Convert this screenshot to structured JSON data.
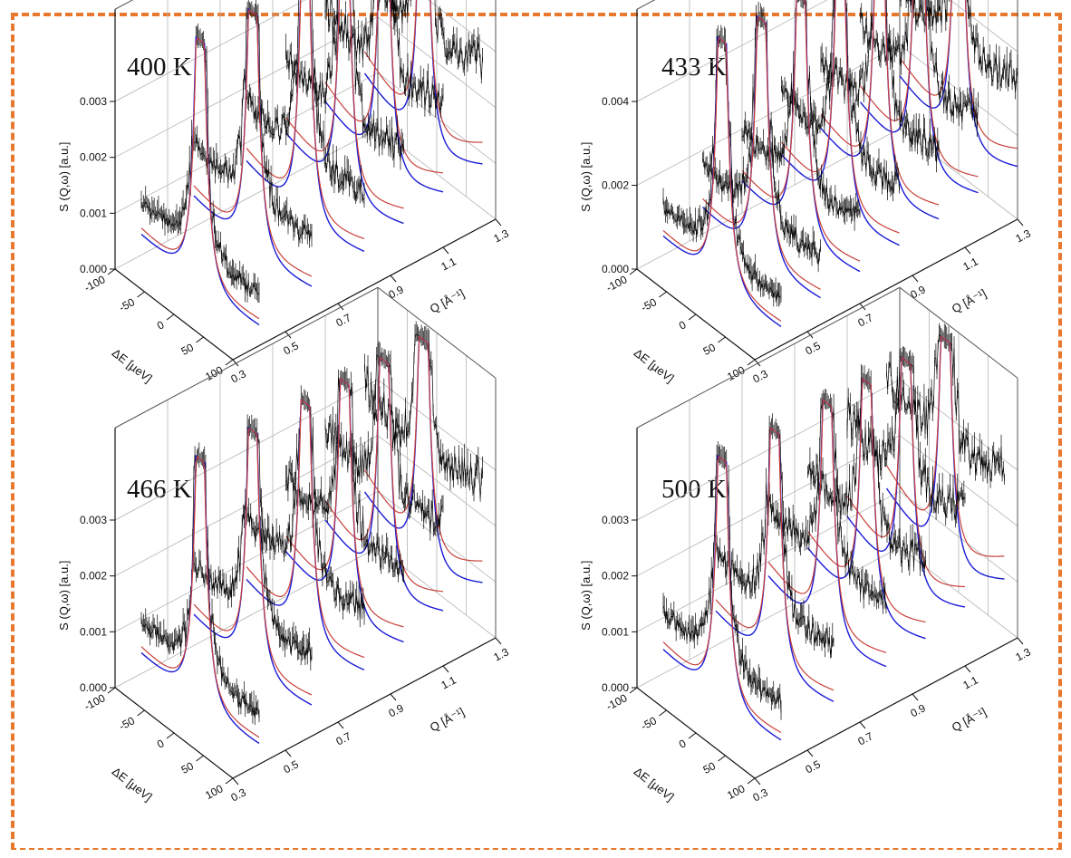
{
  "colors": {
    "frame": "#E8782E",
    "data": "#000000",
    "fit": "#C8403A",
    "component": "#1A1AD6",
    "grid": "#B5B5B5"
  },
  "chart_data": [
    {
      "type": "surface3d-waterfall",
      "title": "400 K",
      "xlabel": "Q [Å⁻¹]",
      "ylabel": "ΔE [µeV]",
      "zlabel": "S (Q,ω) [a.u.]",
      "q_ticks": [
        "0.3",
        "0.5",
        "0.7",
        "0.9",
        "1.1",
        "1.3"
      ],
      "e_ticks": [
        "-100",
        "-50",
        "0",
        "50",
        "100"
      ],
      "z_ticks": [
        "0.000",
        "0.001",
        "0.002",
        "0.003"
      ],
      "q_range": [
        0.3,
        1.3
      ],
      "e_range": [
        -100,
        100
      ],
      "z_range": [
        0,
        0.003
      ],
      "q_values": [
        0.4,
        0.6,
        0.8,
        0.95,
        1.1,
        1.25
      ],
      "baseline_at_edge": [
        0.0005,
        0.0008,
        0.001,
        0.0012,
        0.0015,
        0.0017
      ]
    },
    {
      "type": "surface3d-waterfall",
      "title": "433 K",
      "xlabel": "Q [Å⁻¹]",
      "ylabel": "ΔE [µeV]",
      "zlabel": "S (Q,ω) [a.u.]",
      "q_ticks": [
        "0.3",
        "0.5",
        "0.7",
        "0.9",
        "1.1",
        "1.3"
      ],
      "e_ticks": [
        "-100",
        "-50",
        "0",
        "50",
        "100"
      ],
      "z_ticks": [
        "0.000",
        "0.002",
        "0.004"
      ],
      "q_range": [
        0.3,
        1.3
      ],
      "e_range": [
        -100,
        100
      ],
      "z_range": [
        0,
        0.004
      ],
      "q_values": [
        0.4,
        0.55,
        0.7,
        0.85,
        1.0,
        1.15,
        1.3
      ],
      "baseline_at_edge": [
        0.0006,
        0.0009,
        0.0011,
        0.0013,
        0.0015,
        0.0017,
        0.0019
      ]
    },
    {
      "type": "surface3d-waterfall",
      "title": "466 K",
      "xlabel": "Q [Å⁻¹]",
      "ylabel": "ΔE [µeV]",
      "zlabel": "S (Q,ω) [a.u.]",
      "q_ticks": [
        "0.3",
        "0.5",
        "0.7",
        "0.9",
        "1.1",
        "1.3"
      ],
      "e_ticks": [
        "-100",
        "-50",
        "0",
        "50",
        "100"
      ],
      "z_ticks": [
        "0.000",
        "0.001",
        "0.002",
        "0.003"
      ],
      "q_range": [
        0.3,
        1.3
      ],
      "e_range": [
        -100,
        100
      ],
      "z_range": [
        0,
        0.003
      ],
      "q_values": [
        0.4,
        0.6,
        0.8,
        0.95,
        1.1,
        1.25
      ],
      "baseline_at_edge": [
        0.0005,
        0.0008,
        0.001,
        0.0012,
        0.0015,
        0.0017
      ]
    },
    {
      "type": "surface3d-waterfall",
      "title": "500 K",
      "xlabel": "Q [Å⁻¹]",
      "ylabel": "ΔE [µeV]",
      "zlabel": "S (Q,ω) [a.u.]",
      "q_ticks": [
        "0.3",
        "0.5",
        "0.7",
        "0.9",
        "1.1",
        "1.3"
      ],
      "e_ticks": [
        "-100",
        "-50",
        "0",
        "50",
        "100"
      ],
      "z_ticks": [
        "0.000",
        "0.001",
        "0.002",
        "0.003"
      ],
      "q_range": [
        0.3,
        1.3
      ],
      "e_range": [
        -100,
        100
      ],
      "z_range": [
        0,
        0.003
      ],
      "q_values": [
        0.4,
        0.6,
        0.8,
        0.95,
        1.1,
        1.25
      ],
      "baseline_at_edge": [
        0.0006,
        0.0009,
        0.0011,
        0.0013,
        0.0016,
        0.0018
      ]
    }
  ]
}
